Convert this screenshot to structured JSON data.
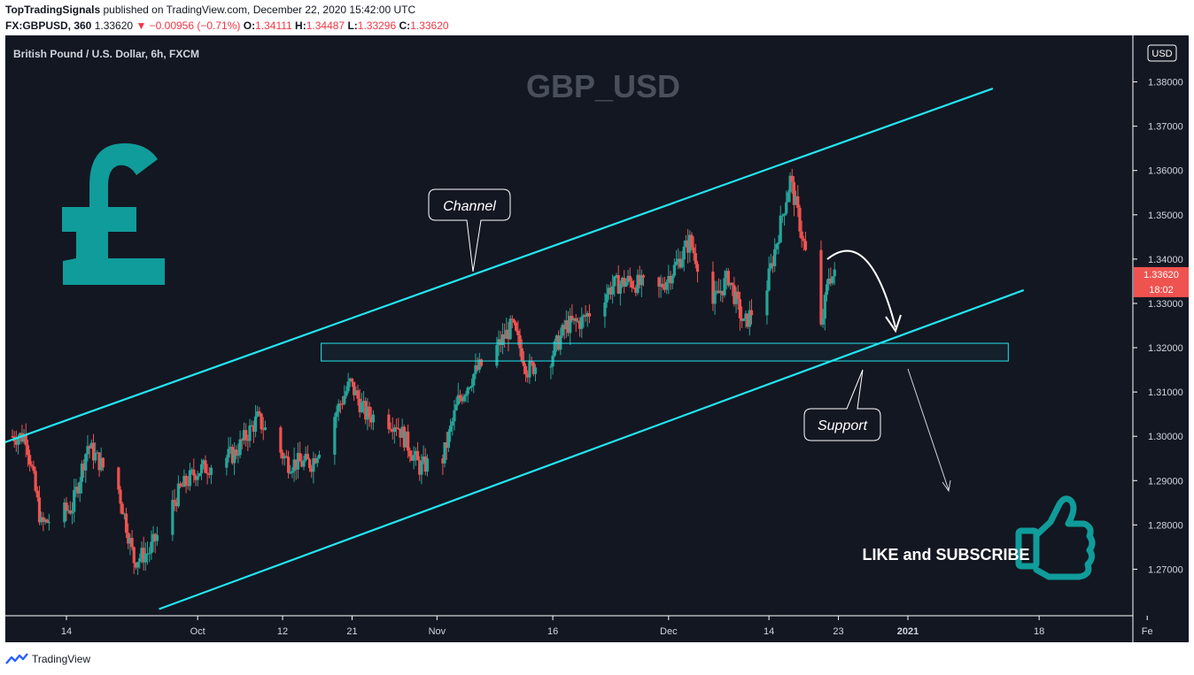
{
  "header": {
    "author": "TopTradingSignals",
    "published": "published on TradingView.com, December 22, 2020 15:42:00 UTC",
    "symbol": "FX:GBPUSD, 360",
    "price": "1.33620",
    "change": "▼ −0.00956 (−0.71%)",
    "o_label": "O:",
    "o": "1.34111",
    "h_label": "H:",
    "h": "1.34487",
    "l_label": "L:",
    "l": "1.33296",
    "c_label": "C:",
    "c": "1.33620"
  },
  "footer": {
    "brand": "TradingView"
  },
  "colors": {
    "background": "#131722",
    "up": "#26a69a",
    "down": "#ef5350",
    "channel": "#22e6f2",
    "pound": "#0f9c9a",
    "price_tag": "#ef5350"
  },
  "icons": [
    "tradingview-logo-icon",
    "pound-sign-icon",
    "thumbs-up-icon"
  ],
  "chart_data": {
    "type": "candlestick",
    "instrument": "British Pound / U.S. Dollar, 6h, FXCM",
    "watermark": "GBP_USD",
    "currency": "USD",
    "ylim": [
      1.2595,
      1.3905
    ],
    "y_ticks": [
      "1.38000",
      "1.37000",
      "1.36000",
      "1.35000",
      "1.34000",
      "1.33000",
      "1.32000",
      "1.31000",
      "1.30000",
      "1.29000",
      "1.28000",
      "1.27000"
    ],
    "x_ticks": [
      "14",
      "Oct",
      "12",
      "21",
      "Nov",
      "16",
      "Dec",
      "14",
      "23",
      "2021",
      "18",
      "Fe"
    ],
    "last_price": "1.33620",
    "countdown": "18:02",
    "close_series": [
      {
        "date": "2020-09-09",
        "close": 1.3
      },
      {
        "date": "2020-09-11",
        "close": 1.28
      },
      {
        "date": "2020-09-15",
        "close": 1.284
      },
      {
        "date": "2020-09-17",
        "close": 1.298
      },
      {
        "date": "2020-09-21",
        "close": 1.288
      },
      {
        "date": "2020-09-23",
        "close": 1.272
      },
      {
        "date": "2020-09-25",
        "close": 1.274
      },
      {
        "date": "2020-09-29",
        "close": 1.288
      },
      {
        "date": "2020-10-01",
        "close": 1.292
      },
      {
        "date": "2020-10-06",
        "close": 1.296
      },
      {
        "date": "2020-10-09",
        "close": 1.304
      },
      {
        "date": "2020-10-13",
        "close": 1.294
      },
      {
        "date": "2020-10-16",
        "close": 1.294
      },
      {
        "date": "2020-10-21",
        "close": 1.312
      },
      {
        "date": "2020-10-23",
        "close": 1.305
      },
      {
        "date": "2020-10-27",
        "close": 1.303
      },
      {
        "date": "2020-10-30",
        "close": 1.293
      },
      {
        "date": "2020-11-02",
        "close": 1.295
      },
      {
        "date": "2020-11-04",
        "close": 1.308
      },
      {
        "date": "2020-11-06",
        "close": 1.314
      },
      {
        "date": "2020-11-09",
        "close": 1.32
      },
      {
        "date": "2020-11-11",
        "close": 1.325
      },
      {
        "date": "2020-11-13",
        "close": 1.315
      },
      {
        "date": "2020-11-16",
        "close": 1.318
      },
      {
        "date": "2020-11-18",
        "close": 1.325
      },
      {
        "date": "2020-11-20",
        "close": 1.326
      },
      {
        "date": "2020-11-24",
        "close": 1.334
      },
      {
        "date": "2020-11-26",
        "close": 1.335
      },
      {
        "date": "2020-11-30",
        "close": 1.333
      },
      {
        "date": "2020-12-02",
        "close": 1.338
      },
      {
        "date": "2020-12-04",
        "close": 1.344
      },
      {
        "date": "2020-12-07",
        "close": 1.33
      },
      {
        "date": "2020-12-09",
        "close": 1.336
      },
      {
        "date": "2020-12-11",
        "close": 1.325
      },
      {
        "date": "2020-12-14",
        "close": 1.334
      },
      {
        "date": "2020-12-16",
        "close": 1.35
      },
      {
        "date": "2020-12-17",
        "close": 1.358
      },
      {
        "date": "2020-12-18",
        "close": 1.35
      },
      {
        "date": "2020-12-21",
        "close": 1.324
      },
      {
        "date": "2020-12-22",
        "close": 1.3362
      }
    ],
    "annotations": {
      "callout_channel": "Channel",
      "callout_support": "Support",
      "cta": "LIKE and SUBSCRIBE",
      "channel_upper": [
        {
          "date": "2020-09-05",
          "price": 1.298
        },
        {
          "date": "2021-01-12",
          "price": 1.3785
        }
      ],
      "channel_lower": [
        {
          "date": "2020-09-26",
          "price": 1.261
        },
        {
          "date": "2021-01-16",
          "price": 1.333
        }
      ],
      "support_zone": {
        "from": "2020-10-17",
        "to": "2021-01-14",
        "top": 1.321,
        "bottom": 1.317
      }
    }
  }
}
